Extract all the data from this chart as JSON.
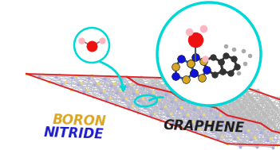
{
  "bg_color": "#ffffff",
  "boron_nitride_text1": "BORON",
  "boron_nitride_text2": "NITRIDE",
  "graphene_text": "GRAPHENE",
  "bn_text_color1": "#DAA520",
  "bn_text_color2": "#1A1ACC",
  "graphene_text_color": "#1a1a1a",
  "lattice_bn_B_color": "#E8D880",
  "lattice_bn_N_color": "#AAAADD",
  "lattice_bn_edge_color": "#BBBBCC",
  "lattice_gr_node_color": "#C8C8C8",
  "lattice_gr_edge_color": "#BBBBBB",
  "border_color": "#DD2222",
  "interface_color": "#DD2222",
  "cyan_color": "#00D8D8",
  "water_O_color": "#EE1111",
  "water_H_color": "#FFB6C1",
  "mol_B_color": "#DAA520",
  "mol_N_color": "#1111DD",
  "mol_C_color": "#333333",
  "mol_bond_BN_color": "#2255BB",
  "mol_bond_CC_color": "#333333",
  "fig_width": 3.51,
  "fig_height": 1.89,
  "dpi": 100
}
